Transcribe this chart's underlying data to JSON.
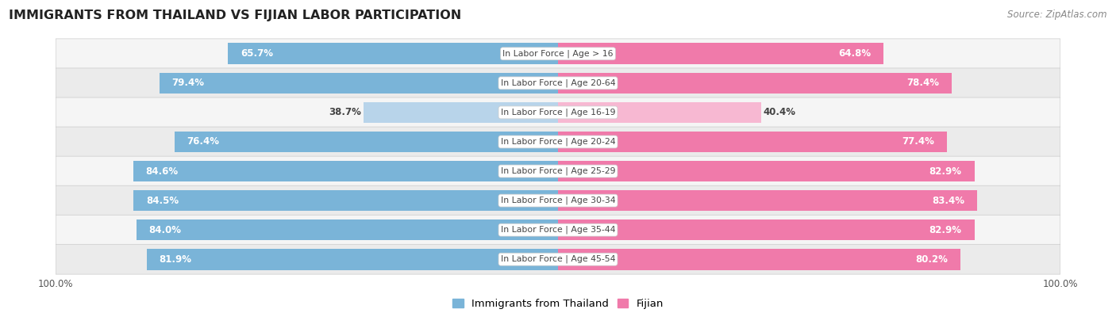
{
  "title": "IMMIGRANTS FROM THAILAND VS FIJIAN LABOR PARTICIPATION",
  "source": "Source: ZipAtlas.com",
  "categories": [
    "In Labor Force | Age > 16",
    "In Labor Force | Age 20-64",
    "In Labor Force | Age 16-19",
    "In Labor Force | Age 20-24",
    "In Labor Force | Age 25-29",
    "In Labor Force | Age 30-34",
    "In Labor Force | Age 35-44",
    "In Labor Force | Age 45-54"
  ],
  "thailand_values": [
    65.7,
    79.4,
    38.7,
    76.4,
    84.6,
    84.5,
    84.0,
    81.9
  ],
  "fijian_values": [
    64.8,
    78.4,
    40.4,
    77.4,
    82.9,
    83.4,
    82.9,
    80.2
  ],
  "thailand_color": "#7ab4d8",
  "thailand_color_light": "#b8d4ea",
  "fijian_color": "#f07aaa",
  "fijian_color_light": "#f7b8d2",
  "row_colors": [
    "#f5f5f5",
    "#ebebeb",
    "#f5f5f5",
    "#ebebeb",
    "#f5f5f5",
    "#ebebeb",
    "#f5f5f5",
    "#ebebeb"
  ],
  "bg_color": "#ffffff",
  "max_value": 100.0,
  "bar_height": 0.72,
  "legend_labels": [
    "Immigrants from Thailand",
    "Fijian"
  ],
  "axis_label": "100.0%"
}
